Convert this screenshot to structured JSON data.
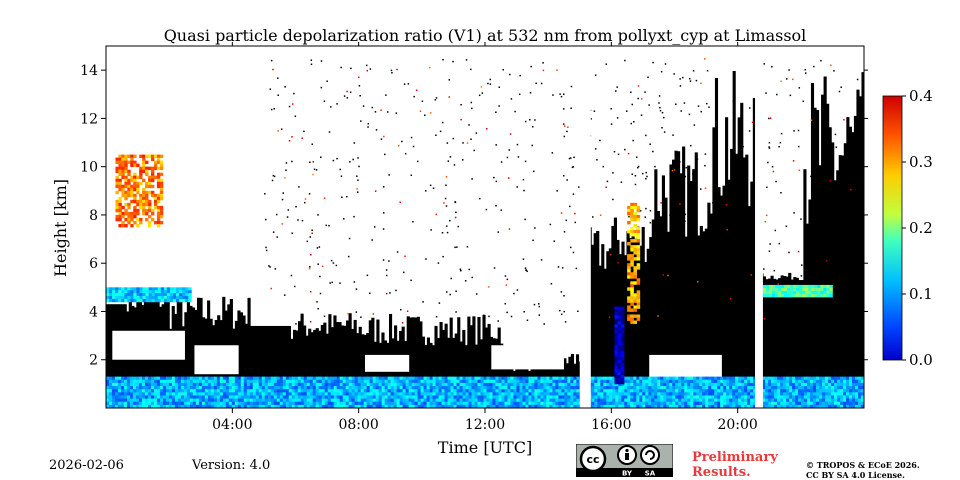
{
  "chart_data": {
    "type": "heatmap",
    "title": "Quasi particle depolarization ratio (V1) at 532 nm from pollyxt_cyp at Limassol",
    "xlabel": "Time [UTC]",
    "ylabel": "Height [km]",
    "xlim": [
      0,
      24
    ],
    "ylim": [
      0,
      15
    ],
    "x_ticks": [
      4,
      8,
      12,
      16,
      20
    ],
    "x_tick_labels": [
      "04:00",
      "08:00",
      "12:00",
      "16:00",
      "20:00"
    ],
    "y_ticks": [
      2,
      4,
      6,
      8,
      10,
      12,
      14
    ],
    "y_tick_labels": [
      "2",
      "4",
      "6",
      "8",
      "10",
      "12",
      "14"
    ],
    "colorbar": {
      "colormap": "jet",
      "range": [
        0.0,
        0.4
      ],
      "ticks": [
        0.0,
        0.1,
        0.2,
        0.3,
        0.4
      ],
      "tick_labels": [
        "0.0",
        "0.1",
        "0.2",
        "0.3",
        "0.4"
      ]
    },
    "features": [
      {
        "label": "boundary layer",
        "t": [
          0,
          24
        ],
        "h": [
          0,
          1.3
        ],
        "value": 0.12
      },
      {
        "label": "aerosol layer",
        "t": [
          0,
          2.7
        ],
        "h": [
          4.4,
          5.0
        ],
        "value": 0.13
      },
      {
        "label": "dust column",
        "t": [
          0.3,
          1.8
        ],
        "h": [
          7.5,
          10.5
        ],
        "value": 0.3
      },
      {
        "label": "aerosol layer",
        "t": [
          20.8,
          23
        ],
        "h": [
          4.6,
          5.1
        ],
        "value": 0.18
      },
      {
        "label": "dust column",
        "t": [
          16.5,
          16.9
        ],
        "h": [
          3.5,
          8.5
        ],
        "value": 0.28
      },
      {
        "label": "blue column",
        "t": [
          16.1,
          16.4
        ],
        "h": [
          1.0,
          4.2
        ],
        "value": 0.02
      }
    ],
    "gaps_utc": [
      [
        15.0,
        15.35
      ],
      [
        20.55,
        20.8
      ]
    ]
  },
  "colors": {
    "no_data": "#000000",
    "background": "#ffffff",
    "prelim": "#e8393b"
  },
  "footer": {
    "date": "2026-02-06",
    "version": "Version: 4.0",
    "preliminary": [
      "Preliminary",
      "Results."
    ],
    "copyright": [
      "© TROPOS & ECoE 2026.",
      "CC BY SA 4.0 License."
    ],
    "license_badge": {
      "cc": "cc",
      "by": "BY",
      "sa": "SA"
    }
  }
}
